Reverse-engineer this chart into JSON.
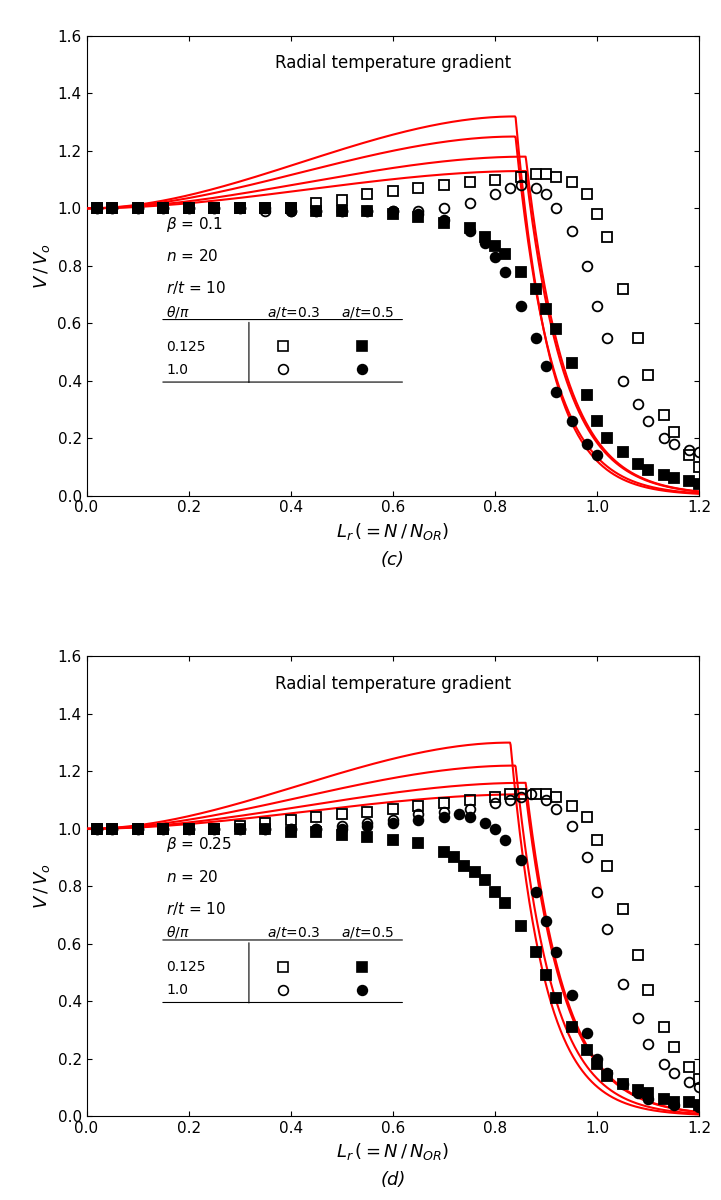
{
  "title": "Radial temperature gradient",
  "xlabel": "$L_r\\,(=N\\,/\\,N_{OR})$",
  "ylabel": "$V\\,/\\,V_o$",
  "xlim": [
    0.0,
    1.2
  ],
  "ylim": [
    0.0,
    1.6
  ],
  "xticks": [
    0.0,
    0.2,
    0.4,
    0.6,
    0.8,
    1.0,
    1.2
  ],
  "yticks": [
    0.0,
    0.2,
    0.4,
    0.6,
    0.8,
    1.0,
    1.2,
    1.4,
    1.6
  ],
  "panel_c": {
    "beta": 0.1,
    "n": 20,
    "rt": 10,
    "label": "(c)"
  },
  "panel_d": {
    "beta": 0.25,
    "n": 20,
    "rt": 10,
    "label": "(d)"
  },
  "line_color": "#FF0000",
  "marker_color_open": "#000000",
  "marker_color_filled": "#000000",
  "background_color": "#FFFFFF"
}
